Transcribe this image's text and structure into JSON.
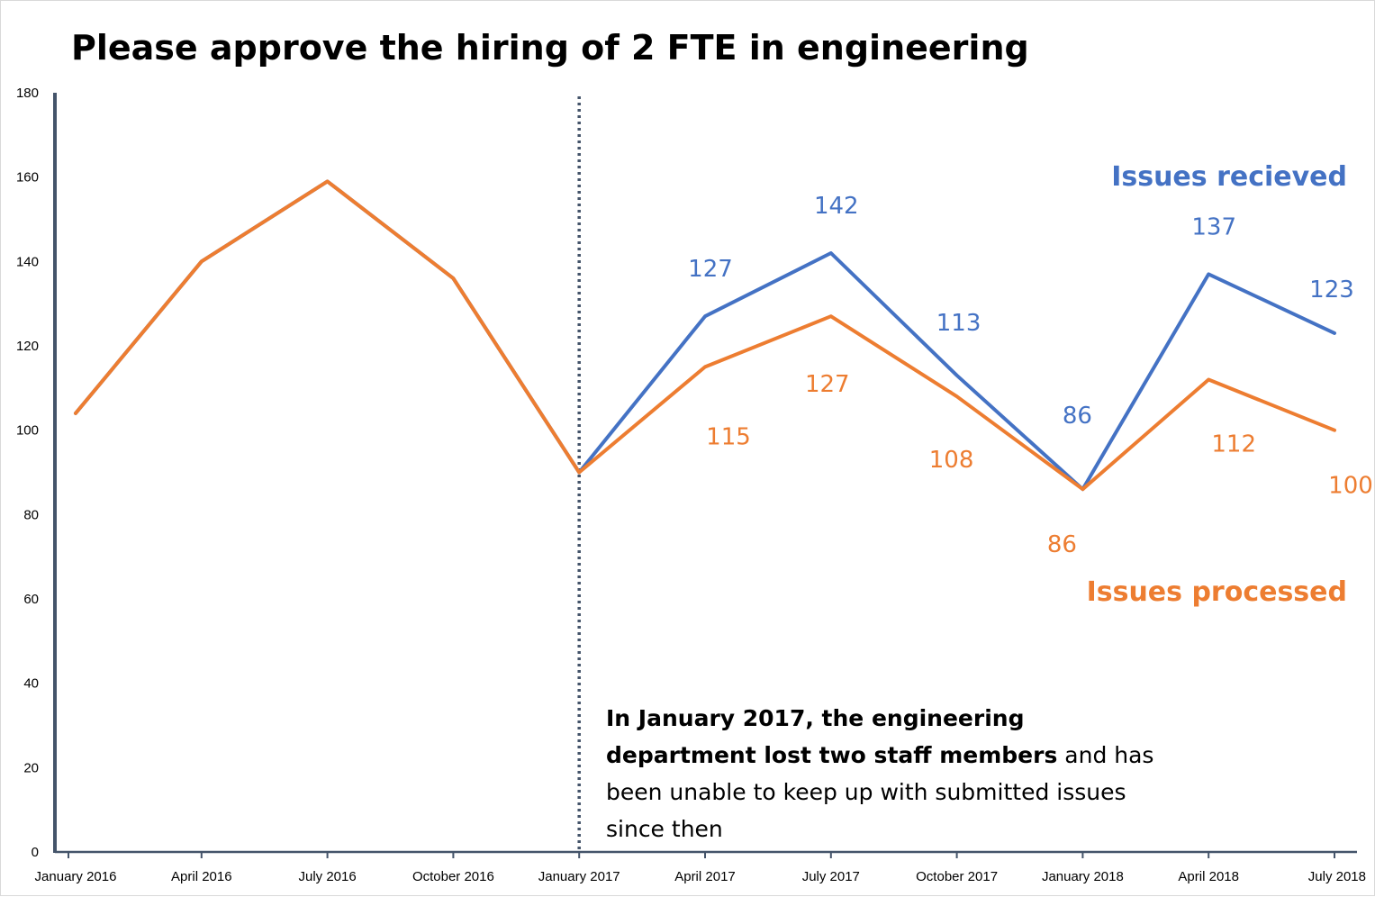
{
  "chart_data": {
    "type": "line",
    "title": "Please approve the hiring of 2 FTE in engineering",
    "xlabel": "",
    "ylabel": "",
    "ylim": [
      0,
      180
    ],
    "yticks": [
      0,
      20,
      40,
      60,
      80,
      100,
      120,
      140,
      160,
      180
    ],
    "categories": [
      "January 2016",
      "April 2016",
      "July 2016",
      "October 2016",
      "January 2017",
      "April 2017",
      "July 2017",
      "October 2017",
      "January 2018",
      "April 2018",
      "July 2018"
    ],
    "grid": false,
    "series": [
      {
        "name": "Issues recieved",
        "color": "#4472C4",
        "values": [
          104,
          140,
          159,
          136,
          90,
          127,
          142,
          113,
          86,
          137,
          123
        ],
        "labels": [
          "",
          "",
          "",
          "",
          "",
          "127",
          "142",
          "113",
          "86",
          "137",
          "123"
        ]
      },
      {
        "name": "Issues processed",
        "color": "#ED7D31",
        "values": [
          104,
          140,
          159,
          136,
          90,
          115,
          127,
          108,
          86,
          112,
          100
        ],
        "labels": [
          "",
          "",
          "",
          "",
          "",
          "115",
          "127",
          "108",
          "86",
          "112",
          "100"
        ]
      }
    ],
    "reference_line": {
      "category": "January 2017",
      "style": "dotted",
      "color": "#44546A"
    },
    "annotation": {
      "bold_text": "In January 2017, the engineering department lost two staff members",
      "text": " and has been unable to keep up with submitted issues since then"
    }
  },
  "colors": {
    "axis": "#44546A",
    "received": "#4472C4",
    "processed": "#ED7D31"
  }
}
